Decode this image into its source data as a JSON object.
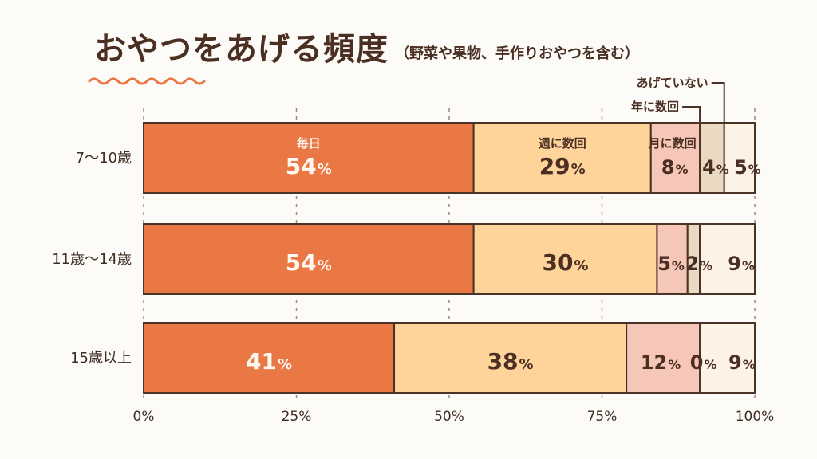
{
  "title": "おやつをあげる頻度",
  "subtitle": "（野菜や果物、手作りおやつを含む）",
  "chart_data": {
    "type": "bar",
    "orientation": "horizontal",
    "stacked": true,
    "percent": true,
    "title": "おやつをあげる頻度",
    "subtitle": "（野菜や果物、手作りおやつを含む）",
    "categories": [
      "7〜10歳",
      "11歳〜14歳",
      "15歳以上"
    ],
    "series": [
      {
        "name": "毎日",
        "values": [
          54,
          54,
          41
        ],
        "color": "#ea7845"
      },
      {
        "name": "週に数回",
        "values": [
          29,
          30,
          38
        ],
        "color": "#ffd49a"
      },
      {
        "name": "月に数回",
        "values": [
          8,
          5,
          12
        ],
        "color": "#f6c6b8"
      },
      {
        "name": "年に数回",
        "values": [
          4,
          2,
          0
        ],
        "color": "#ead9c3"
      },
      {
        "name": "あげていない",
        "values": [
          5,
          9,
          9
        ],
        "color": "#fcf2e6"
      }
    ],
    "xlim": [
      0,
      100
    ],
    "x_ticks": [
      "0%",
      "25%",
      "50%",
      "75%",
      "100%"
    ],
    "grid": true,
    "legend": "inline labels and top-right callouts"
  },
  "colors": {
    "outline": "#4a3427",
    "text": "#4b2f23",
    "background": "#fdfbf7",
    "accent": "#ea7845"
  }
}
